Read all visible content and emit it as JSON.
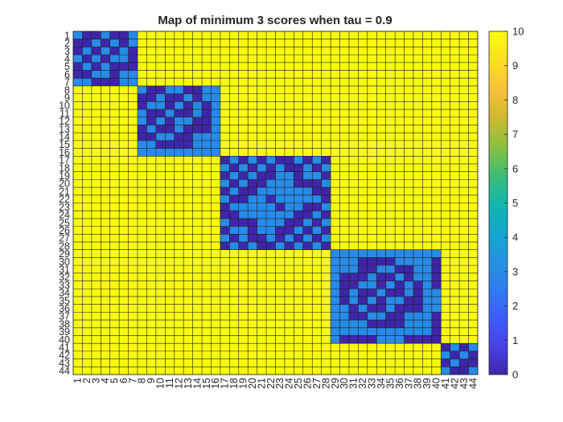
{
  "chart_data": {
    "type": "heatmap",
    "title": "Map of minimum 3 scores when tau = 0.9",
    "xlabel": "",
    "ylabel": "",
    "n": 44,
    "x_ticks": [
      "1",
      "2",
      "3",
      "4",
      "5",
      "6",
      "7",
      "8",
      "9",
      "10",
      "11",
      "12",
      "13",
      "14",
      "15",
      "16",
      "17",
      "18",
      "19",
      "20",
      "21",
      "22",
      "23",
      "24",
      "25",
      "26",
      "27",
      "28",
      "29",
      "30",
      "31",
      "32",
      "33",
      "34",
      "35",
      "36",
      "37",
      "38",
      "39",
      "40",
      "41",
      "42",
      "43",
      "44"
    ],
    "y_ticks": [
      "1",
      "2",
      "3",
      "4",
      "5",
      "6",
      "7",
      "8",
      "9",
      "10",
      "11",
      "12",
      "13",
      "14",
      "15",
      "16",
      "17",
      "18",
      "19",
      "20",
      "21",
      "22",
      "23",
      "24",
      "25",
      "26",
      "27",
      "28",
      "29",
      "30",
      "31",
      "32",
      "33",
      "34",
      "35",
      "36",
      "37",
      "38",
      "39",
      "40",
      "41",
      "42",
      "43",
      "44"
    ],
    "background_value": 10,
    "blocks": [
      {
        "rows": [
          1,
          7
        ],
        "cols": [
          1,
          7
        ]
      },
      {
        "rows": [
          8,
          16
        ],
        "cols": [
          8,
          16
        ]
      },
      {
        "rows": [
          17,
          28
        ],
        "cols": [
          17,
          28
        ]
      },
      {
        "rows": [
          29,
          40
        ],
        "cols": [
          29,
          40
        ]
      },
      {
        "rows": [
          41,
          44
        ],
        "cols": [
          41,
          44
        ]
      }
    ],
    "block_cell_values": [
      0,
      3
    ],
    "clim": [
      0,
      10
    ],
    "colorbar_ticks": [
      "0",
      "1",
      "2",
      "3",
      "4",
      "5",
      "6",
      "7",
      "8",
      "9",
      "10"
    ],
    "colormap": "parula",
    "colormap_stops": [
      "#3e26a8",
      "#4743e6",
      "#3f5cfd",
      "#2f7dee",
      "#2394e0",
      "#11a8cb",
      "#14b6ac",
      "#3fbc72",
      "#8cc03e",
      "#d0b92f",
      "#fbc23a",
      "#f9e01e",
      "#f9fb0e"
    ],
    "grid": true,
    "colorbar": "right"
  }
}
